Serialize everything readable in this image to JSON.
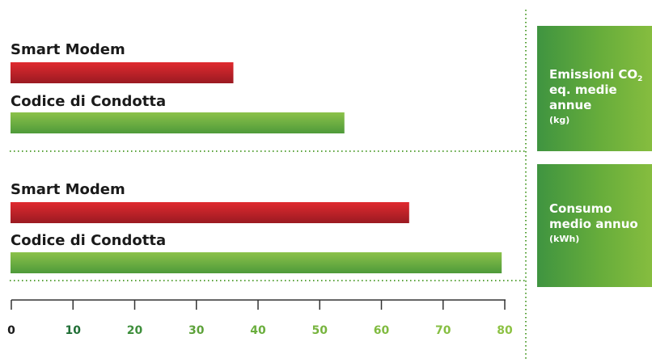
{
  "chart_data": {
    "type": "bar",
    "orientation": "horizontal",
    "xlim": [
      0,
      80
    ],
    "ticks": [
      0,
      10,
      20,
      30,
      40,
      50,
      60,
      70,
      80
    ],
    "groups": [
      {
        "metric": "Emissioni CO2 eq. medie annue (kg)",
        "bars": [
          {
            "label": "Smart Modem",
            "value": 36,
            "color": "#c8222a"
          },
          {
            "label": "Codice di Condotta",
            "value": 54,
            "color": "#6aae3d"
          }
        ]
      },
      {
        "metric": "Consumo medio annuo (kWh)",
        "bars": [
          {
            "label": "Smart Modem",
            "value": 64.5,
            "color": "#c8222a"
          },
          {
            "label": "Codice di Condotta",
            "value": 79.5,
            "color": "#6aae3d"
          }
        ]
      }
    ],
    "tick_colors": [
      "#1a1a1a",
      "#1f6e35",
      "#3f8f3c",
      "#5da23a",
      "#6aae3d",
      "#77b43e",
      "#80bb40",
      "#86bf42",
      "#8dc244"
    ]
  },
  "panels": [
    {
      "title_line1": "Emissioni CO",
      "title_sub": "2",
      "title_line2": "eq. medie",
      "title_line3": "annue",
      "unit": "(kg)"
    },
    {
      "title_line1": "Consumo",
      "title_line2": "medio annuo",
      "unit": "(kWh)"
    }
  ]
}
